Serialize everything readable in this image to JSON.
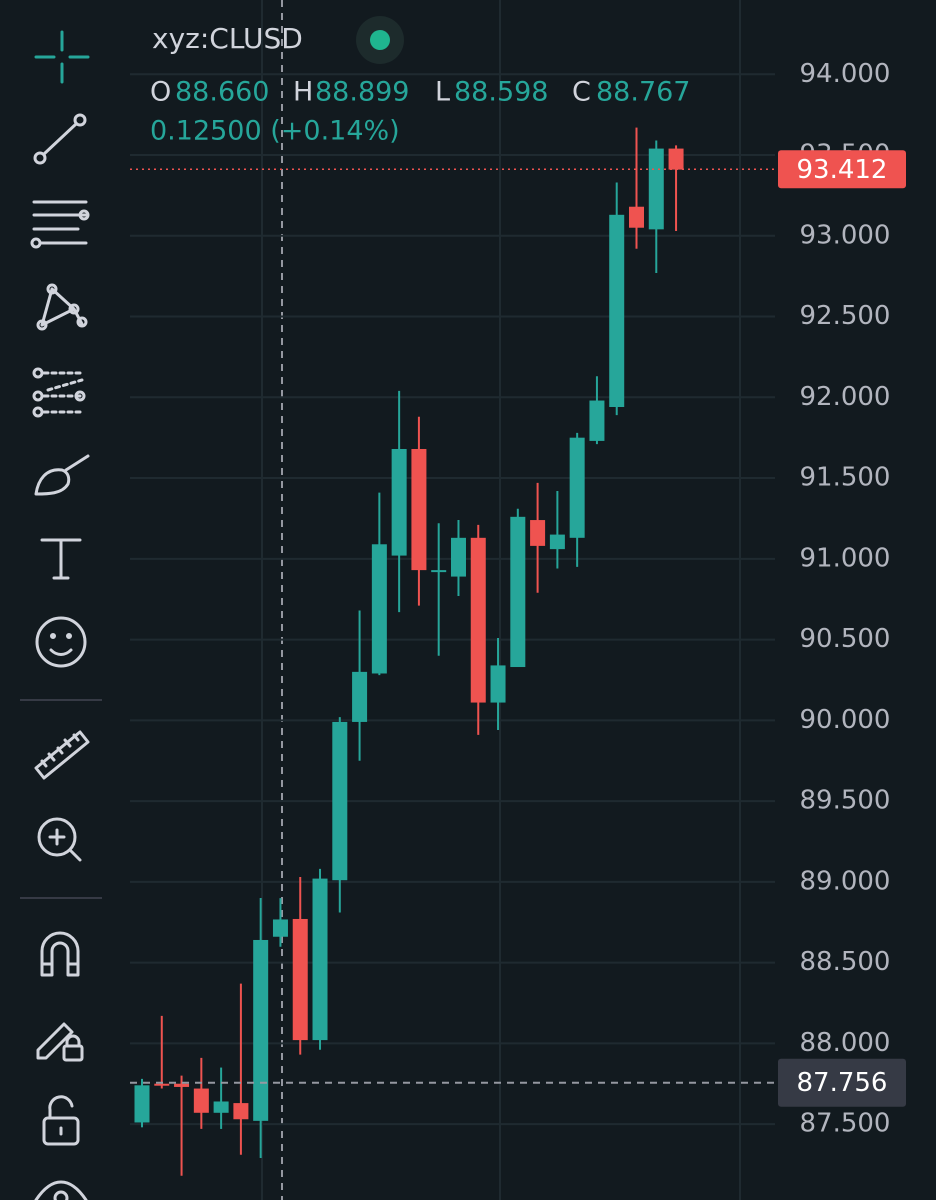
{
  "header": {
    "symbol": "xyz:CLUSD",
    "ohlc": [
      {
        "key": "O",
        "value": "88.660"
      },
      {
        "key": "H",
        "value": "88.899"
      },
      {
        "key": "L",
        "value": "88.598"
      },
      {
        "key": "C",
        "value": "88.767"
      }
    ],
    "change": "0.12500 (+0.14%)"
  },
  "chart_data": {
    "type": "candlestick",
    "open": [
      87.51,
      87.75,
      87.75,
      87.72,
      87.57,
      87.63,
      87.52,
      88.66,
      88.77,
      88.02,
      89.01,
      89.99,
      90.29,
      91.02,
      91.68,
      90.92,
      90.89,
      91.13,
      90.11,
      90.33,
      91.24,
      91.06,
      91.13,
      91.73,
      91.94,
      93.18,
      93.04,
      93.54
    ],
    "high": [
      87.78,
      88.17,
      87.8,
      87.91,
      87.85,
      88.37,
      88.9,
      88.899,
      89.03,
      89.08,
      90.02,
      90.68,
      91.41,
      92.04,
      91.88,
      91.22,
      91.24,
      91.21,
      90.51,
      91.31,
      91.47,
      91.42,
      91.78,
      92.13,
      93.33,
      93.67,
      93.59,
      93.56
    ],
    "low": [
      87.48,
      87.72,
      87.18,
      87.47,
      87.47,
      87.31,
      87.29,
      88.598,
      87.93,
      87.96,
      88.81,
      89.75,
      90.28,
      90.67,
      90.71,
      90.4,
      90.77,
      89.91,
      89.94,
      90.33,
      90.79,
      90.94,
      90.95,
      91.71,
      91.89,
      92.92,
      92.77,
      93.03
    ],
    "close": [
      87.74,
      87.74,
      87.73,
      87.57,
      87.64,
      87.53,
      88.64,
      88.767,
      88.02,
      89.02,
      89.99,
      90.3,
      91.09,
      91.68,
      90.93,
      90.93,
      91.13,
      90.11,
      90.34,
      91.26,
      91.08,
      91.15,
      91.75,
      91.98,
      93.13,
      93.05,
      93.54,
      93.41
    ],
    "up_color": "#26a69a",
    "down_color": "#ef5350",
    "ylim": [
      87.03,
      94.46
    ],
    "yticks": [
      {
        "value": 94,
        "label": "94.000"
      },
      {
        "value": 93.5,
        "label": "93.500"
      },
      {
        "value": 93,
        "label": "93.000"
      },
      {
        "value": 92.5,
        "label": "92.500"
      },
      {
        "value": 92,
        "label": "92.000"
      },
      {
        "value": 91.5,
        "label": "91.500"
      },
      {
        "value": 91,
        "label": "91.000"
      },
      {
        "value": 90.5,
        "label": "90.500"
      },
      {
        "value": 90,
        "label": "90.000"
      },
      {
        "value": 89.5,
        "label": "89.500"
      },
      {
        "value": 89,
        "label": "89.000"
      },
      {
        "value": 88.5,
        "label": "88.500"
      },
      {
        "value": 88,
        "label": "88.000"
      },
      {
        "value": 87.5,
        "label": "87.500"
      }
    ],
    "grid": true,
    "last_price": {
      "value": 93.412,
      "label": "93.412",
      "color": "#ef5350"
    },
    "crosshair_price": {
      "value": 87.756,
      "label": "87.756",
      "color": "#363a45"
    }
  }
}
